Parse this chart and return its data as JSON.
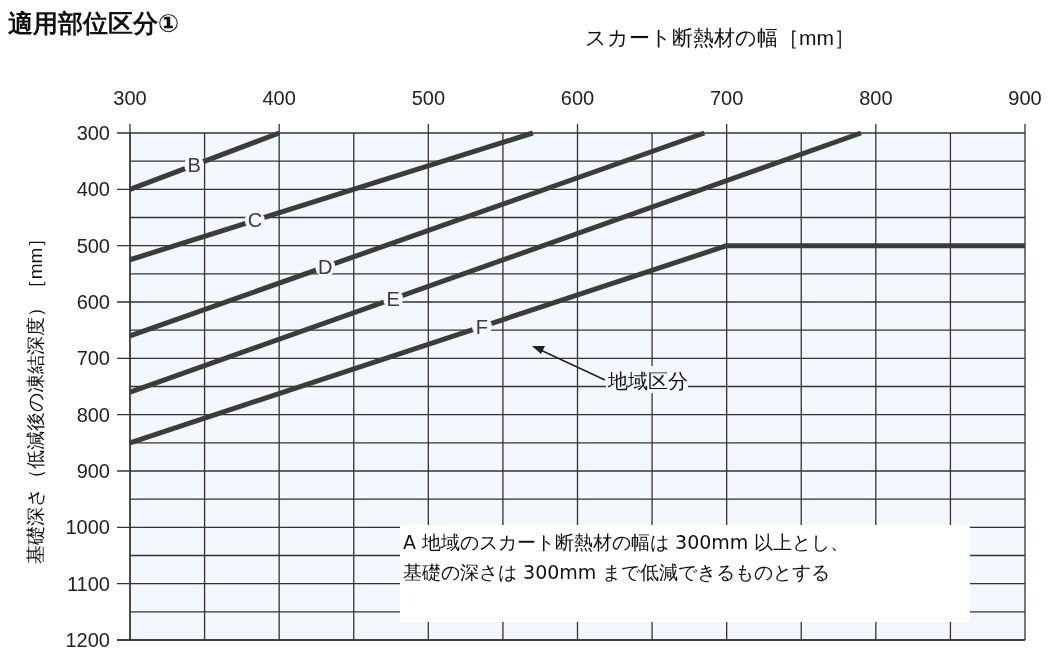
{
  "chart_data": {
    "type": "line",
    "title": "適用部位区分①",
    "xlabel": "スカート断熱材の幅［mm］",
    "ylabel": "基礎深さ（低減後の凍結深度）［mm］",
    "xlim": [
      300,
      900
    ],
    "ylim": [
      1200,
      300
    ],
    "xticks": [
      300,
      {
        "value": 350,
        "label": null
      },
      400,
      {
        "value": 450,
        "label": null
      },
      500,
      {
        "value": 550,
        "label": null
      },
      600,
      {
        "value": 650,
        "label": null
      },
      700,
      {
        "value": 750,
        "label": null
      },
      800,
      {
        "value": 850,
        "label": null
      },
      900
    ],
    "yticks": [
      300,
      {
        "value": 350,
        "label": null
      },
      400,
      {
        "value": 450,
        "label": null
      },
      500,
      {
        "value": 550,
        "label": null
      },
      600,
      {
        "value": 650,
        "label": null
      },
      700,
      {
        "value": 750,
        "label": null
      },
      800,
      {
        "value": 850,
        "label": null
      },
      900,
      {
        "value": 950,
        "label": null
      },
      1000,
      {
        "value": 1050,
        "label": null
      },
      1100,
      {
        "value": 1150,
        "label": null
      },
      1200
    ],
    "grid": true,
    "marker": "none",
    "line_style": "solid",
    "series": [
      {
        "name": "B",
        "color": "#3a3d3a",
        "x": [
          300,
          400
        ],
        "values": [
          400,
          300
        ]
      },
      {
        "name": "C",
        "color": "#3a3d3a",
        "x": [
          300,
          570
        ],
        "values": [
          525,
          300
        ]
      },
      {
        "name": "D",
        "color": "#3a3d3a",
        "x": [
          300,
          685
        ],
        "values": [
          660,
          300
        ]
      },
      {
        "name": "E",
        "color": "#3a3d3a",
        "x": [
          300,
          790
        ],
        "values": [
          760,
          300
        ]
      },
      {
        "name": "F",
        "color": "#3a3d3a",
        "x": [
          300,
          700,
          900
        ],
        "values": [
          850,
          500,
          500
        ]
      }
    ],
    "annotations": [
      "地域区分",
      "A 地域のスカート断熱材の幅は 300mm 以上とし、",
      "基礎の深さは 300mm まで低減できるものとする"
    ]
  }
}
